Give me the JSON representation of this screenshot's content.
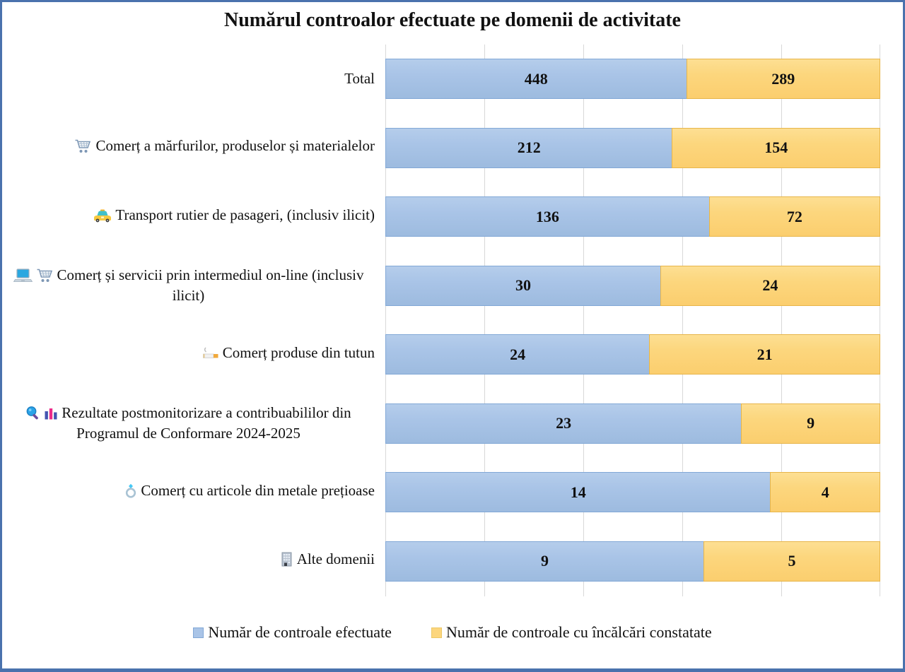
{
  "title": "Numărul controalor efectuate pe domenii de activitate",
  "colors": {
    "blue_fill": "#a9c4e7",
    "blue_border": "#82a8d6",
    "yellow_fill": "#fcd67d",
    "yellow_border": "#e7b54a",
    "gridline": "#d8d8d8",
    "frame": "#4a72ad"
  },
  "legend": [
    {
      "label": "Număr de controale efectuate",
      "swatch": "blue",
      "color": "#a9c4e7"
    },
    {
      "label": "Număr de controale cu încălcări constatate",
      "swatch": "yellow",
      "color": "#fcd67d"
    }
  ],
  "chart_data": {
    "type": "bar",
    "subtype": "horizontal-100pct-stacked",
    "title": "Numărul controalor efectuate pe domenii de activitate",
    "categories": [
      "Total",
      "Comerț a mărfurilor, produselor și materialelor",
      "Transport rutier de pasageri, (inclusiv ilicit)",
      "Comerț și servicii prin intermediul on-line (inclusiv ilicit)",
      "Comerț produse din tutun",
      "Rezultate postmonitorizare a contribuabililor din Programul de Conformare 2024-2025",
      "Comerț cu articole din metale prețioase",
      "Alte domenii"
    ],
    "category_icons": [
      [],
      [
        "cart-icon"
      ],
      [
        "taxi-icon"
      ],
      [
        "laptop-icon",
        "cart-icon"
      ],
      [
        "cigarette-icon"
      ],
      [
        "magnifier-icon",
        "bar-chart-icon"
      ],
      [
        "ring-icon"
      ],
      [
        "building-icon"
      ]
    ],
    "series": [
      {
        "name": "Număr de controale efectuate",
        "color": "#a9c4e7",
        "values": [
          448,
          212,
          136,
          30,
          24,
          23,
          14,
          9
        ]
      },
      {
        "name": "Număr de controale cu încălcări constatate",
        "color": "#fcd67d",
        "values": [
          289,
          154,
          72,
          24,
          21,
          9,
          4,
          5
        ]
      }
    ],
    "gridlines_percent": [
      0,
      20,
      40,
      60,
      80,
      100
    ],
    "grid": "vertical-only",
    "legend_position": "bottom",
    "value_labels": "centered-inside-segments"
  }
}
